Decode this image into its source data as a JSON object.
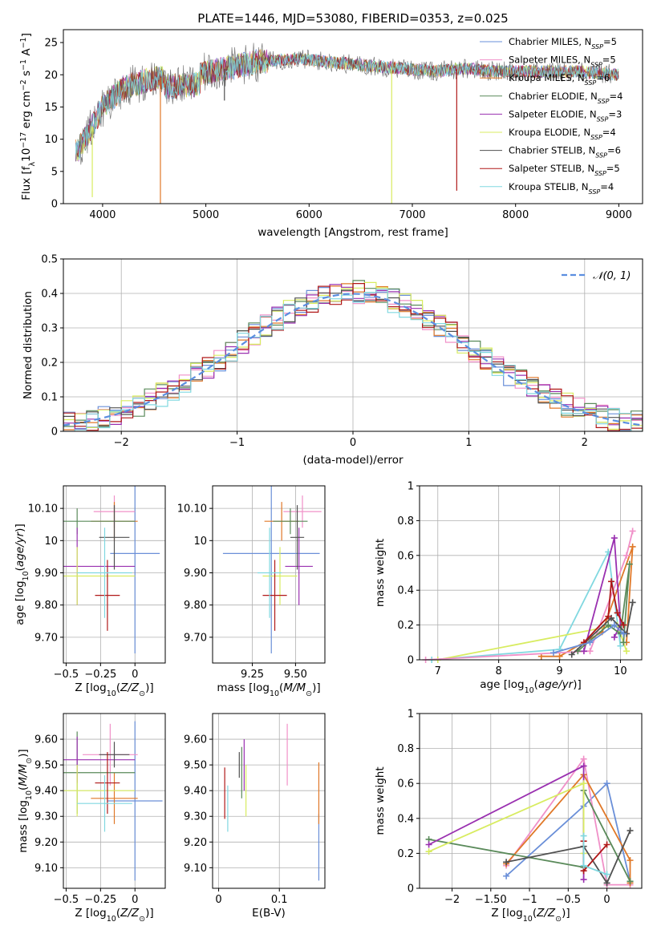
{
  "figure_title": "PLATE=1446, MJD=53080, FIBERID=0353, z=0.025",
  "colors": {
    "c1": "#6a8fd8",
    "c2": "#f090c8",
    "c3": "#e07828",
    "c4": "#5a8a5a",
    "c5": "#9a30b0",
    "c6": "#d8ec60",
    "c7": "#505050",
    "c8": "#b01818",
    "c9": "#80d8e0"
  },
  "legend": [
    {
      "label": "Chabrier MILES, N_SSP=5",
      "color": "#6a8fd8"
    },
    {
      "label": "Salpeter MILES, N_SSP=5",
      "color": "#f090c8"
    },
    {
      "label": "Kroupa MILES, N_SSP=6",
      "color": "#e07828"
    },
    {
      "label": "Chabrier ELODIE, N_SSP=4",
      "color": "#5a8a5a"
    },
    {
      "label": "Salpeter ELODIE, N_SSP=3",
      "color": "#9a30b0"
    },
    {
      "label": "Kroupa ELODIE, N_SSP=4",
      "color": "#d8ec60"
    },
    {
      "label": "Chabrier STELIB, N_SSP=6",
      "color": "#505050"
    },
    {
      "label": "Salpeter STELIB, N_SSP=5",
      "color": "#b01818"
    },
    {
      "label": "Kroupa STELIB, N_SSP=4",
      "color": "#80d8e0"
    }
  ],
  "chart_data": [
    {
      "id": "spectrum",
      "type": "line",
      "xlabel": "wavelength [Angstrom, rest frame]",
      "ylabel": "Flux [f_λ 10^-17 erg cm^-2 s^-1 A^-1]",
      "xlim": [
        3620,
        9230
      ],
      "ylim": [
        0,
        27
      ],
      "xticks": [
        4000,
        5000,
        6000,
        7000,
        8000,
        9000
      ],
      "yticks": [
        0,
        5,
        10,
        15,
        20,
        25
      ],
      "continuum": {
        "x": [
          3750,
          3900,
          4000,
          4200,
          4500,
          4900,
          5200,
          5500,
          5900,
          6200,
          6500,
          6900,
          7200,
          7500,
          7800,
          8200,
          8600,
          9000
        ],
        "y": [
          8,
          12,
          15,
          18,
          19.5,
          20,
          21,
          22,
          22.5,
          22,
          21.5,
          21,
          20.5,
          21,
          20.5,
          20.5,
          20.5,
          20
        ]
      },
      "spike_dips": [
        {
          "x": 4560,
          "y": 0,
          "color": "#e07828"
        },
        {
          "x": 6800,
          "y": 0,
          "color": "#d8ec60"
        },
        {
          "x": 7430,
          "y": 2,
          "color": "#b01818"
        },
        {
          "x": 5180,
          "y": 16,
          "color": "#505050"
        },
        {
          "x": 3900,
          "y": 1,
          "color": "#d8ec60"
        }
      ]
    },
    {
      "id": "residual_hist",
      "type": "histogram",
      "xlabel": "(data-model)/error",
      "ylabel": "Normed distribution",
      "xlim": [
        -2.5,
        2.5
      ],
      "ylim": [
        0,
        0.5
      ],
      "xticks": [
        -2,
        -1,
        0,
        1,
        2
      ],
      "yticks": [
        0.0,
        0.1,
        0.2,
        0.3,
        0.4,
        0.5
      ],
      "bin_width": 0.1,
      "reference_curve": {
        "label": "N(0,1)",
        "color": "#5b8ee0"
      },
      "series_count": 9
    },
    {
      "id": "age_vs_Z",
      "type": "errorbar",
      "xlabel": "Z [log10(Z/Z⊙)]",
      "ylabel": "age [log10(age/yr)]",
      "xlim": [
        -0.52,
        0.22
      ],
      "ylim": [
        9.62,
        10.17
      ],
      "xticks": [
        -0.5,
        -0.25,
        0.0
      ],
      "yticks": [
        9.7,
        9.8,
        9.9,
        10.0,
        10.1
      ],
      "points": [
        {
          "x": 0.0,
          "y": 9.96,
          "xerr": 0.18,
          "yerr": 0.31,
          "color": "#6a8fd8"
        },
        {
          "x": -0.15,
          "y": 10.09,
          "xerr": 0.15,
          "yerr": 0.05,
          "color": "#f090c8"
        },
        {
          "x": -0.15,
          "y": 10.06,
          "xerr": 0.17,
          "yerr": 0.06,
          "color": "#e07828"
        },
        {
          "x": -0.42,
          "y": 10.06,
          "xerr": 0.42,
          "yerr": 0.04,
          "color": "#5a8a5a"
        },
        {
          "x": -0.42,
          "y": 9.92,
          "xerr": 0.42,
          "yerr": 0.12,
          "color": "#9a30b0"
        },
        {
          "x": -0.42,
          "y": 9.89,
          "xerr": 0.42,
          "yerr": 0.09,
          "color": "#d8ec60"
        },
        {
          "x": -0.15,
          "y": 10.01,
          "xerr": 0.11,
          "yerr": 0.1,
          "color": "#505050"
        },
        {
          "x": -0.2,
          "y": 9.83,
          "xerr": 0.09,
          "yerr": 0.11,
          "color": "#b01818"
        },
        {
          "x": -0.22,
          "y": 9.9,
          "xerr": 0.2,
          "yerr": 0.14,
          "color": "#80d8e0"
        }
      ]
    },
    {
      "id": "age_vs_mass",
      "type": "errorbar",
      "xlabel": "mass [log10(M/M⊙)]",
      "ylabel": "",
      "xlim": [
        9.02,
        9.67
      ],
      "ylim": [
        9.62,
        10.17
      ],
      "xticks": [
        9.25,
        9.5
      ],
      "yticks": [
        9.7,
        9.8,
        9.9,
        10.0,
        10.1
      ],
      "points": [
        {
          "x": 9.36,
          "y": 9.96,
          "xerr": 0.28,
          "yerr": 0.31,
          "color": "#6a8fd8"
        },
        {
          "x": 9.54,
          "y": 10.09,
          "xerr": 0.11,
          "yerr": 0.05,
          "color": "#f090c8"
        },
        {
          "x": 9.42,
          "y": 10.06,
          "xerr": 0.1,
          "yerr": 0.06,
          "color": "#e07828"
        },
        {
          "x": 9.47,
          "y": 10.06,
          "xerr": 0.1,
          "yerr": 0.04,
          "color": "#5a8a5a"
        },
        {
          "x": 9.52,
          "y": 9.92,
          "xerr": 0.08,
          "yerr": 0.12,
          "color": "#9a30b0"
        },
        {
          "x": 9.41,
          "y": 9.89,
          "xerr": 0.1,
          "yerr": 0.09,
          "color": "#d8ec60"
        },
        {
          "x": 9.51,
          "y": 10.01,
          "xerr": 0.04,
          "yerr": 0.1,
          "color": "#505050"
        },
        {
          "x": 9.38,
          "y": 9.83,
          "xerr": 0.07,
          "yerr": 0.11,
          "color": "#b01818"
        },
        {
          "x": 9.35,
          "y": 9.9,
          "xerr": 0.07,
          "yerr": 0.14,
          "color": "#80d8e0"
        }
      ]
    },
    {
      "id": "weight_vs_age",
      "type": "line",
      "xlabel": "age [log10(age/yr)]",
      "ylabel": "mass weight",
      "xlim": [
        6.7,
        10.35
      ],
      "ylim": [
        0,
        1
      ],
      "xticks": [
        7,
        8,
        9,
        10
      ],
      "yticks": [
        0.0,
        0.2,
        0.4,
        0.6,
        0.8,
        1.0
      ],
      "series": [
        {
          "color": "#80d8e0",
          "x": [
            6.9,
            9.0,
            9.8,
            10.0
          ],
          "y": [
            0.0,
            0.06,
            0.62,
            0.08
          ]
        },
        {
          "color": "#d8ec60",
          "x": [
            7.0,
            9.95,
            10.1
          ],
          "y": [
            0.0,
            0.2,
            0.05
          ]
        },
        {
          "color": "#e07828",
          "x": [
            8.7,
            9.0,
            9.7,
            10.2,
            10.1
          ],
          "y": [
            0.02,
            0.02,
            0.16,
            0.65,
            0.1
          ]
        },
        {
          "color": "#f090c8",
          "x": [
            6.8,
            9.5,
            10.1,
            10.2
          ],
          "y": [
            0.0,
            0.05,
            0.6,
            0.74
          ]
        },
        {
          "color": "#9a30b0",
          "x": [
            9.4,
            9.9,
            10.0,
            9.9
          ],
          "y": [
            0.05,
            0.7,
            0.2,
            0.13
          ]
        },
        {
          "color": "#5a8a5a",
          "x": [
            9.3,
            9.8,
            10.0,
            10.15,
            10.05
          ],
          "y": [
            0.05,
            0.2,
            0.15,
            0.55,
            0.1
          ]
        },
        {
          "color": "#505050",
          "x": [
            9.2,
            9.85,
            10.1,
            10.2
          ],
          "y": [
            0.03,
            0.24,
            0.15,
            0.33
          ]
        },
        {
          "color": "#b01818",
          "x": [
            9.4,
            9.8,
            9.85,
            9.95,
            10.05
          ],
          "y": [
            0.1,
            0.25,
            0.45,
            0.27,
            0.2
          ]
        },
        {
          "color": "#6a8fd8",
          "x": [
            8.9,
            9.5,
            9.9,
            10.05
          ],
          "y": [
            0.04,
            0.1,
            0.2,
            0.15
          ]
        }
      ]
    },
    {
      "id": "mass_vs_Z",
      "type": "errorbar",
      "xlabel": "Z [log10(Z/Z⊙)]",
      "ylabel": "mass [log10(M/M⊙)]",
      "xlim": [
        -0.52,
        0.22
      ],
      "ylim": [
        9.02,
        9.7
      ],
      "xticks": [
        -0.5,
        -0.25,
        0.0
      ],
      "yticks": [
        9.1,
        9.2,
        9.3,
        9.4,
        9.5,
        9.6
      ],
      "points": [
        {
          "x": 0.0,
          "y": 9.36,
          "xerr": 0.2,
          "yerr": 0.31,
          "color": "#6a8fd8"
        },
        {
          "x": -0.18,
          "y": 9.54,
          "xerr": 0.2,
          "yerr": 0.12,
          "color": "#f090c8"
        },
        {
          "x": -0.15,
          "y": 9.37,
          "xerr": 0.17,
          "yerr": 0.1,
          "color": "#e07828"
        },
        {
          "x": -0.42,
          "y": 9.47,
          "xerr": 0.42,
          "yerr": 0.16,
          "color": "#5a8a5a"
        },
        {
          "x": -0.42,
          "y": 9.52,
          "xerr": 0.42,
          "yerr": 0.09,
          "color": "#9a30b0"
        },
        {
          "x": -0.42,
          "y": 9.4,
          "xerr": 0.42,
          "yerr": 0.1,
          "color": "#d8ec60"
        },
        {
          "x": -0.15,
          "y": 9.54,
          "xerr": 0.11,
          "yerr": 0.05,
          "color": "#505050"
        },
        {
          "x": -0.2,
          "y": 9.43,
          "xerr": 0.09,
          "yerr": 0.12,
          "color": "#b01818"
        },
        {
          "x": -0.22,
          "y": 9.35,
          "xerr": 0.2,
          "yerr": 0.11,
          "color": "#80d8e0"
        }
      ]
    },
    {
      "id": "mass_vs_ebv",
      "type": "errorbar",
      "xlabel": "E(B-V)",
      "ylabel": "",
      "xlim": [
        -0.01,
        0.175
      ],
      "ylim": [
        9.02,
        9.7
      ],
      "xticks": [
        0.0,
        0.1
      ],
      "yticks": [
        9.1,
        9.2,
        9.3,
        9.4,
        9.5,
        9.6
      ],
      "points": [
        {
          "x": 0.165,
          "y": 9.18,
          "xerr": 0,
          "yerr": 0.13,
          "color": "#6a8fd8"
        },
        {
          "x": 0.113,
          "y": 9.54,
          "xerr": 0,
          "yerr": 0.12,
          "color": "#f090c8"
        },
        {
          "x": 0.165,
          "y": 9.39,
          "xerr": 0,
          "yerr": 0.12,
          "color": "#e07828"
        },
        {
          "x": 0.038,
          "y": 9.47,
          "xerr": 0,
          "yerr": 0.1,
          "color": "#5a8a5a"
        },
        {
          "x": 0.042,
          "y": 9.5,
          "xerr": 0,
          "yerr": 0.1,
          "color": "#9a30b0"
        },
        {
          "x": 0.045,
          "y": 9.4,
          "xerr": 0,
          "yerr": 0.1,
          "color": "#d8ec60"
        },
        {
          "x": 0.034,
          "y": 9.5,
          "xerr": 0,
          "yerr": 0.05,
          "color": "#505050"
        },
        {
          "x": 0.01,
          "y": 9.39,
          "xerr": 0,
          "yerr": 0.1,
          "color": "#b01818"
        },
        {
          "x": 0.015,
          "y": 9.33,
          "xerr": 0,
          "yerr": 0.09,
          "color": "#80d8e0"
        }
      ]
    },
    {
      "id": "weight_vs_Z",
      "type": "line",
      "xlabel": "Z [log10(Z/Z⊙)]",
      "ylabel": "mass weight",
      "xlim": [
        -2.42,
        0.45
      ],
      "ylim": [
        0,
        1
      ],
      "xticks": [
        -2.0,
        -1.5,
        -1.0,
        -0.5,
        0.0
      ],
      "yticks": [
        0.0,
        0.2,
        0.4,
        0.6,
        0.8,
        1.0
      ],
      "series": [
        {
          "color": "#6a8fd8",
          "x": [
            -1.3,
            -0.3,
            0.0,
            0.3
          ],
          "y": [
            0.07,
            0.47,
            0.6,
            0.04
          ]
        },
        {
          "color": "#f090c8",
          "x": [
            -1.3,
            -0.3,
            0.0,
            0.3
          ],
          "y": [
            0.13,
            0.74,
            0.02,
            0.02
          ]
        },
        {
          "color": "#e07828",
          "x": [
            -1.3,
            -0.3,
            0.3,
            0.3
          ],
          "y": [
            0.14,
            0.65,
            0.16,
            0.03
          ]
        },
        {
          "color": "#5a8a5a",
          "x": [
            -2.3,
            -0.3,
            -0.3,
            0.3
          ],
          "y": [
            0.28,
            0.12,
            0.56,
            0.04
          ]
        },
        {
          "color": "#9a30b0",
          "x": [
            -2.3,
            -0.3,
            -0.3
          ],
          "y": [
            0.25,
            0.7,
            0.05
          ]
        },
        {
          "color": "#d8ec60",
          "x": [
            -2.3,
            -0.3,
            -0.3
          ],
          "y": [
            0.21,
            0.6,
            0.2
          ]
        },
        {
          "color": "#505050",
          "x": [
            -1.3,
            -0.3,
            0.0,
            0.3
          ],
          "y": [
            0.15,
            0.24,
            0.03,
            0.33
          ]
        },
        {
          "color": "#b01818",
          "x": [
            -0.3,
            -0.3,
            0.0
          ],
          "y": [
            0.27,
            0.1,
            0.25
          ]
        },
        {
          "color": "#80d8e0",
          "x": [
            -0.3,
            -0.3,
            0.0
          ],
          "y": [
            0.3,
            0.13,
            0.08
          ]
        }
      ]
    }
  ]
}
